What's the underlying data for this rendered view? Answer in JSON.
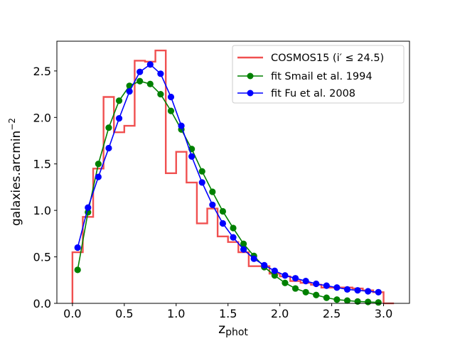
{
  "chart_data": {
    "type": "line",
    "title": "",
    "xlabel_main": "z",
    "xlabel_sub": "phot",
    "ylabel_main": "galaxies.arcmin",
    "ylabel_sup": "−2",
    "xlim": [
      -0.15,
      3.25
    ],
    "ylim": [
      0.0,
      2.82
    ],
    "xticks": [
      0.0,
      0.5,
      1.0,
      1.5,
      2.0,
      2.5,
      3.0
    ],
    "xtick_labels": [
      "0.0",
      "0.5",
      "1.0",
      "1.5",
      "2.0",
      "2.5",
      "3.0"
    ],
    "yticks": [
      0.0,
      0.5,
      1.0,
      1.5,
      2.0,
      2.5
    ],
    "ytick_labels": [
      "0.0",
      "0.5",
      "1.0",
      "1.5",
      "2.0",
      "2.5"
    ],
    "legend_position": "top-right",
    "histogram": {
      "name": "COSMOS15",
      "legend_label": "COSMOS15 (i′ ≤ 24.5)",
      "color": "#f05050",
      "bin_edges": [
        0.0,
        0.1,
        0.2,
        0.3,
        0.4,
        0.5,
        0.6,
        0.7,
        0.8,
        0.9,
        1.0,
        1.1,
        1.2,
        1.3,
        1.4,
        1.5,
        1.6,
        1.7,
        1.8,
        1.9,
        2.0,
        2.1,
        2.2,
        2.3,
        2.4,
        2.5,
        2.6,
        2.7,
        2.8,
        2.9,
        3.0
      ],
      "values": [
        0.55,
        0.93,
        1.45,
        2.22,
        1.84,
        1.91,
        2.61,
        2.6,
        2.72,
        1.4,
        1.63,
        1.3,
        0.86,
        1.02,
        0.72,
        0.66,
        0.55,
        0.4,
        0.4,
        0.32,
        0.29,
        0.24,
        0.22,
        0.2,
        0.17,
        0.17,
        0.17,
        0.16,
        0.14,
        0.12
      ]
    },
    "series": [
      {
        "name": "fit Smail et al. 1994",
        "color": "#008000",
        "x": [
          0.05,
          0.15,
          0.25,
          0.35,
          0.45,
          0.55,
          0.65,
          0.75,
          0.85,
          0.95,
          1.05,
          1.15,
          1.25,
          1.35,
          1.45,
          1.55,
          1.65,
          1.75,
          1.85,
          1.95,
          2.05,
          2.15,
          2.25,
          2.35,
          2.45,
          2.55,
          2.65,
          2.75,
          2.85,
          2.95
        ],
        "values": [
          0.36,
          0.98,
          1.5,
          1.89,
          2.18,
          2.34,
          2.39,
          2.36,
          2.25,
          2.07,
          1.87,
          1.66,
          1.42,
          1.2,
          0.99,
          0.81,
          0.64,
          0.51,
          0.39,
          0.3,
          0.22,
          0.16,
          0.12,
          0.09,
          0.06,
          0.04,
          0.03,
          0.02,
          0.015,
          0.01
        ]
      },
      {
        "name": "fit Fu et al. 2008",
        "color": "#0000ff",
        "x": [
          0.05,
          0.15,
          0.25,
          0.35,
          0.45,
          0.55,
          0.65,
          0.75,
          0.85,
          0.95,
          1.05,
          1.15,
          1.25,
          1.35,
          1.45,
          1.55,
          1.65,
          1.75,
          1.85,
          1.95,
          2.05,
          2.15,
          2.25,
          2.35,
          2.45,
          2.55,
          2.65,
          2.75,
          2.85,
          2.95
        ],
        "values": [
          0.6,
          1.03,
          1.36,
          1.67,
          1.99,
          2.28,
          2.49,
          2.57,
          2.47,
          2.22,
          1.91,
          1.58,
          1.3,
          1.06,
          0.86,
          0.71,
          0.58,
          0.48,
          0.41,
          0.35,
          0.3,
          0.27,
          0.24,
          0.21,
          0.19,
          0.17,
          0.15,
          0.14,
          0.13,
          0.12
        ]
      }
    ]
  }
}
